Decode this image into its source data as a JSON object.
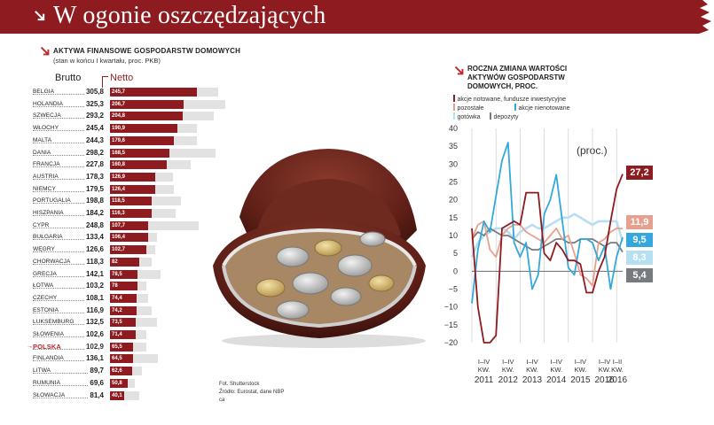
{
  "title": "W ogonie oszczędzających",
  "left": {
    "header": "Aktywa finansowe gospodarstw domowych",
    "subheader": "(stan w końcu I kwartału, proc. PKB)",
    "brutto_label": "Brutto",
    "netto_label": "Netto",
    "rows": [
      {
        "country": "BELGIA",
        "brutto_text": "305,8",
        "netto_text": "245,7",
        "brutto": 305.8,
        "netto": 245.7
      },
      {
        "country": "HOLANDIA",
        "brutto_text": "325,3",
        "netto_text": "206,7",
        "brutto": 325.3,
        "netto": 206.7
      },
      {
        "country": "SZWECJA",
        "brutto_text": "293,2",
        "netto_text": "204,8",
        "brutto": 293.2,
        "netto": 204.8
      },
      {
        "country": "WŁOCHY",
        "brutto_text": "245,4",
        "netto_text": "190,9",
        "brutto": 245.4,
        "netto": 190.9
      },
      {
        "country": "MALTA",
        "brutto_text": "244,3",
        "netto_text": "179,6",
        "brutto": 244.3,
        "netto": 179.6
      },
      {
        "country": "DANIA",
        "brutto_text": "298,2",
        "netto_text": "168,5",
        "brutto": 298.2,
        "netto": 168.5
      },
      {
        "country": "FRANCJA",
        "brutto_text": "227,8",
        "netto_text": "160,8",
        "brutto": 227.8,
        "netto": 160.8
      },
      {
        "country": "AUSTRIA",
        "brutto_text": "178,3",
        "netto_text": "126,9",
        "brutto": 178.3,
        "netto": 126.9
      },
      {
        "country": "NIEMCY",
        "brutto_text": "179,5",
        "netto_text": "126,4",
        "brutto": 179.5,
        "netto": 126.4
      },
      {
        "country": "PORTUGALIA",
        "brutto_text": "198,8",
        "netto_text": "118,5",
        "brutto": 198.8,
        "netto": 118.5
      },
      {
        "country": "HISZPANIA",
        "brutto_text": "184,2",
        "netto_text": "116,3",
        "brutto": 184.2,
        "netto": 116.3
      },
      {
        "country": "CYPR",
        "brutto_text": "248,8",
        "netto_text": "107,7",
        "brutto": 248.8,
        "netto": 107.7
      },
      {
        "country": "BUŁGARIA",
        "brutto_text": "133,4",
        "netto_text": "106,4",
        "brutto": 133.4,
        "netto": 106.4
      },
      {
        "country": "WĘGRY",
        "brutto_text": "126,6",
        "netto_text": "102,7",
        "brutto": 126.6,
        "netto": 102.7
      },
      {
        "country": "CHORWACJA",
        "brutto_text": "118,3",
        "netto_text": "82",
        "brutto": 118.3,
        "netto": 82
      },
      {
        "country": "GRECJA",
        "brutto_text": "142,1",
        "netto_text": "78,5",
        "brutto": 142.1,
        "netto": 78.5
      },
      {
        "country": "ŁOTWA",
        "brutto_text": "103,2",
        "netto_text": "78",
        "brutto": 103.2,
        "netto": 78
      },
      {
        "country": "CZECHY",
        "brutto_text": "108,1",
        "netto_text": "74,4",
        "brutto": 108.1,
        "netto": 74.4
      },
      {
        "country": "ESTONIA",
        "brutto_text": "116,9",
        "netto_text": "74,2",
        "brutto": 116.9,
        "netto": 74.2
      },
      {
        "country": "LUKSEMBURG",
        "brutto_text": "132,5",
        "netto_text": "73,5",
        "brutto": 132.5,
        "netto": 73.5
      },
      {
        "country": "SŁOWENIA",
        "brutto_text": "102,6",
        "netto_text": "71,4",
        "brutto": 102.6,
        "netto": 71.4
      },
      {
        "country": "POLSKA",
        "brutto_text": "102,9",
        "netto_text": "65,5",
        "brutto": 102.9,
        "netto": 65.5,
        "highlight": true
      },
      {
        "country": "FINLANDIA",
        "brutto_text": "136,1",
        "netto_text": "64,5",
        "brutto": 136.1,
        "netto": 64.5
      },
      {
        "country": "LITWA",
        "brutto_text": "89,7",
        "netto_text": "62,6",
        "brutto": 89.7,
        "netto": 62.6
      },
      {
        "country": "RUMUNIA",
        "brutto_text": "69,6",
        "netto_text": "50,8",
        "brutto": 69.6,
        "netto": 50.8
      },
      {
        "country": "SŁOWACJA",
        "brutto_text": "81,4",
        "netto_text": "40,1",
        "brutto": 81.4,
        "netto": 40.1
      }
    ]
  },
  "credits": {
    "photo": "Fot. Shutterstock",
    "source": "Źródło: Eurostat, dane NBP",
    "author": "ca"
  },
  "right": {
    "header": "Roczna zmiana wartości aktywów gospodarstw domowych, proc.",
    "legend": [
      {
        "label": "akcje notowane, fundusze inwestycyjne",
        "color": "#8e1b1f"
      },
      {
        "label": "pozostałe",
        "color": "#e8a08e"
      },
      {
        "label": "akcje nienotowane",
        "color": "#34a8dd"
      },
      {
        "label": "gotówka",
        "color": "#b6dff2"
      },
      {
        "label": "depozyty",
        "color": "#777b80"
      }
    ],
    "unit": "(proc.)",
    "badges": [
      {
        "text": "27,2",
        "color": "#8e1b1f"
      },
      {
        "text": "11,9",
        "color": "#e8a08e"
      },
      {
        "text": "9,5",
        "color": "#34a8dd"
      },
      {
        "text": "8,3",
        "color": "#b6dff2"
      },
      {
        "text": "5,4",
        "color": "#777b80"
      }
    ]
  },
  "chart_data": [
    {
      "type": "bar",
      "title": "Aktywa finansowe gospodarstw domowych",
      "subtitle": "(stan w końcu I kwartału, proc. PKB)",
      "categories": [
        "BELGIA",
        "HOLANDIA",
        "SZWECJA",
        "WŁOCHY",
        "MALTA",
        "DANIA",
        "FRANCJA",
        "AUSTRIA",
        "NIEMCY",
        "PORTUGALIA",
        "HISZPANIA",
        "CYPR",
        "BUŁGARIA",
        "WĘGRY",
        "CHORWACJA",
        "GRECJA",
        "ŁOTWA",
        "CZECHY",
        "ESTONIA",
        "LUKSEMBURG",
        "SŁOWENIA",
        "POLSKA",
        "FINLANDIA",
        "LITWA",
        "RUMUNIA",
        "SŁOWACJA"
      ],
      "series": [
        {
          "name": "Brutto",
          "values": [
            305.8,
            325.3,
            293.2,
            245.4,
            244.3,
            298.2,
            227.8,
            178.3,
            179.5,
            198.8,
            184.2,
            248.8,
            133.4,
            126.6,
            118.3,
            142.1,
            103.2,
            108.1,
            116.9,
            132.5,
            102.6,
            102.9,
            136.1,
            89.7,
            69.6,
            81.4
          ]
        },
        {
          "name": "Netto",
          "values": [
            245.7,
            206.7,
            204.8,
            190.9,
            179.6,
            168.5,
            160.8,
            126.9,
            126.4,
            118.5,
            116.3,
            107.7,
            106.4,
            102.7,
            82,
            78.5,
            78,
            74.4,
            74.2,
            73.5,
            71.4,
            65.5,
            64.5,
            62.6,
            50.8,
            40.1
          ]
        }
      ]
    },
    {
      "type": "line",
      "title": "Roczna zmiana wartości aktywów gospodarstw domowych, proc.",
      "ylabel": "(proc.)",
      "ylim": [
        -20,
        40
      ],
      "yticks": [
        -20,
        -15,
        -10,
        -5,
        0,
        5,
        10,
        15,
        20,
        25,
        30,
        35,
        40
      ],
      "xtick_labels": [
        {
          "l1": "I–IV",
          "l2": "KW.",
          "l3": "2011"
        },
        {
          "l1": "I–IV",
          "l2": "KW.",
          "l3": "2012"
        },
        {
          "l1": "I–IV",
          "l2": "KW.",
          "l3": "2013"
        },
        {
          "l1": "I–IV",
          "l2": "KW.",
          "l3": "2014"
        },
        {
          "l1": "I–IV",
          "l2": "KW.",
          "l3": "2015"
        },
        {
          "l1": "I–IV",
          "l2": "KW.",
          "l3": "2016"
        },
        {
          "l1": "I–II",
          "l2": "KW.",
          "l3": "2016"
        }
      ],
      "x": [
        "2011 I",
        "2011 II",
        "2011 III",
        "2011 IV",
        "2012 I",
        "2012 II",
        "2012 III",
        "2012 IV",
        "2013 I",
        "2013 II",
        "2013 III",
        "2013 IV",
        "2014 I",
        "2014 II",
        "2014 III",
        "2014 IV",
        "2015 I",
        "2015 II",
        "2015 III",
        "2015 IV",
        "2016 I",
        "2016 II",
        "2016 III",
        "2016 IV",
        "2017 I",
        "2017 II"
      ],
      "series": [
        {
          "name": "akcje notowane, fundusze inwestycyjne",
          "color": "#8e1b1f",
          "values": [
            12,
            -10,
            -20,
            -20,
            -18,
            12,
            13,
            14,
            13,
            22,
            22,
            22,
            5,
            3,
            8,
            6,
            3,
            3,
            2,
            -6,
            -6,
            0,
            4,
            14,
            23,
            27.2
          ]
        },
        {
          "name": "pozostałe",
          "color": "#e8a08e",
          "values": [
            9,
            13,
            14,
            6,
            4,
            10,
            12,
            13,
            13,
            11,
            10,
            9,
            8,
            10,
            12,
            9,
            10,
            5,
            -1,
            -2,
            -4,
            8,
            9,
            11,
            12,
            11.9
          ]
        },
        {
          "name": "akcje nienotowane",
          "color": "#34a8dd",
          "values": [
            -9,
            6,
            14,
            11,
            21,
            31,
            36,
            8,
            4,
            8,
            -5,
            -1,
            16,
            20,
            27,
            14,
            1,
            -1,
            9,
            9,
            8,
            3,
            7,
            -5,
            4,
            9.5
          ]
        },
        {
          "name": "gotówka",
          "color": "#b6dff2",
          "values": [
            4,
            8,
            10,
            11,
            12,
            12,
            11,
            9,
            11,
            12,
            13,
            12,
            12,
            13,
            14,
            15,
            15,
            16,
            15,
            14,
            13,
            14,
            14,
            14,
            14,
            8.3
          ]
        },
        {
          "name": "depozyty",
          "color": "#777b80",
          "values": [
            9,
            11,
            10,
            12,
            11,
            10,
            10,
            9,
            8,
            7,
            6,
            6,
            7,
            8,
            9,
            9,
            8,
            8,
            9,
            9,
            9,
            8,
            7,
            8,
            8,
            5.4
          ]
        }
      ]
    }
  ]
}
